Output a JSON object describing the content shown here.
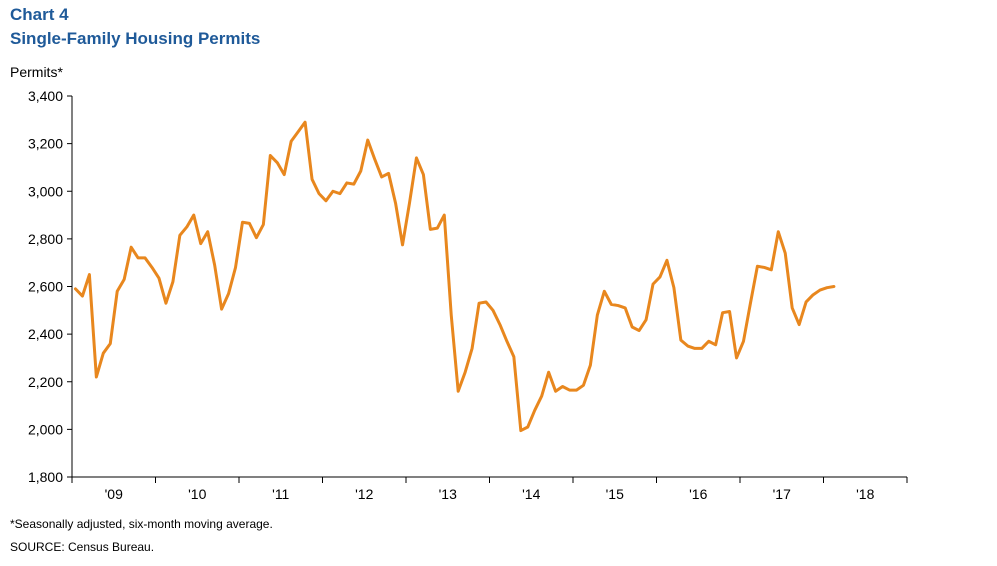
{
  "header": {
    "chart_number": "Chart 4",
    "title": "Single-Family Housing Permits"
  },
  "footer": {
    "note": "*Seasonally adjusted, six-month moving average.",
    "source": "SOURCE: Census Bureau."
  },
  "colors": {
    "title": "#1f5a99",
    "line": "#e8871e",
    "axis": "#000000"
  },
  "chart_data": {
    "type": "line",
    "title": "Single-Family Housing Permits",
    "ylabel": "Permits*",
    "xlabel": "",
    "ylim": [
      1800,
      3400
    ],
    "yticks": [
      1800,
      2000,
      2200,
      2400,
      2600,
      2800,
      3000,
      3200,
      3400
    ],
    "ytick_labels": [
      "1,800",
      "2,000",
      "2,200",
      "2,400",
      "2,600",
      "2,800",
      "3,000",
      "3,200",
      "3,400"
    ],
    "xtick_labels": [
      "'09",
      "'10",
      "'11",
      "'12",
      "'13",
      "'14",
      "'15",
      "'16",
      "'17",
      "'18"
    ],
    "x_start": "2009-01",
    "grid": false,
    "legend": "none",
    "series": [
      {
        "values": [
          2590,
          2560,
          2650,
          2220,
          2320,
          2360,
          2580,
          2630,
          2765,
          2720,
          2720,
          2680,
          2635,
          2530,
          2620,
          2815,
          2850,
          2900,
          2780,
          2830,
          2690,
          2505,
          2570,
          2680,
          2870,
          2865,
          2805,
          2860,
          3150,
          3120,
          3070,
          3210,
          3250,
          3290,
          3050,
          2990,
          2960,
          3000,
          2990,
          3035,
          3030,
          3085,
          3215,
          3135,
          3060,
          3075,
          2950,
          2775,
          2950,
          3140,
          3070,
          2840,
          2845,
          2900,
          2480,
          2160,
          2240,
          2340,
          2530,
          2535,
          2500,
          2440,
          2370,
          2305,
          1995,
          2010,
          2080,
          2140,
          2240,
          2160,
          2180,
          2165,
          2165,
          2185,
          2270,
          2480,
          2580,
          2525,
          2520,
          2510,
          2430,
          2415,
          2460,
          2610,
          2640,
          2710,
          2595,
          2375,
          2350,
          2340,
          2340,
          2370,
          2355,
          2490,
          2495,
          2300,
          2370,
          2530,
          2685,
          2680,
          2670,
          2830,
          2740,
          2510,
          2440,
          2535,
          2565,
          2585,
          2595,
          2600
        ]
      }
    ]
  }
}
